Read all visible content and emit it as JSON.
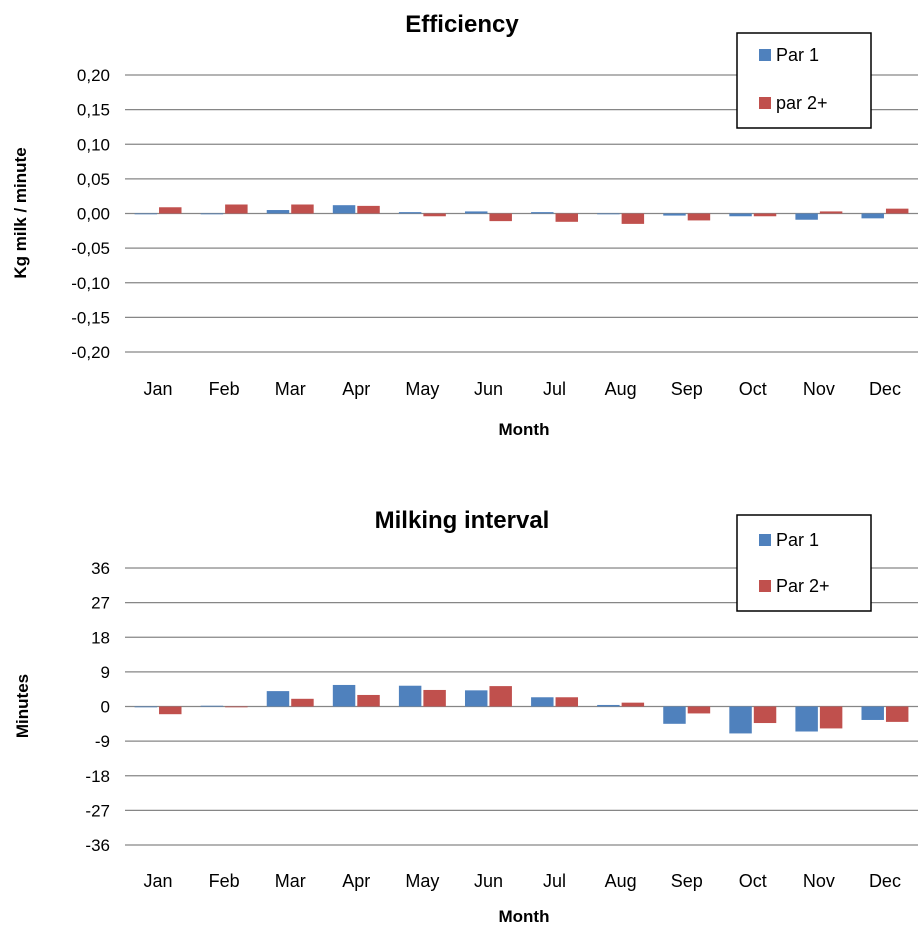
{
  "colors": {
    "series1": "#4f81bd",
    "series2": "#c0504d",
    "grid": "#868686"
  },
  "chart_data": [
    {
      "type": "bar",
      "title": "Efficiency",
      "xlabel": "Month",
      "ylabel": "Kg milk / minute",
      "ylim": [
        -0.2,
        0.2
      ],
      "yticks": [
        "0,20",
        "0,15",
        "0,10",
        "0,05",
        "0,00",
        "-0,05",
        "-0,10",
        "-0,15",
        "-0,20"
      ],
      "ytick_values": [
        0.2,
        0.15,
        0.1,
        0.05,
        0.0,
        -0.05,
        -0.1,
        -0.15,
        -0.2
      ],
      "categories": [
        "Jan",
        "Feb",
        "Mar",
        "Apr",
        "May",
        "Jun",
        "Jul",
        "Aug",
        "Sep",
        "Oct",
        "Nov",
        "Dec"
      ],
      "grid": true,
      "legend_position": "top-right",
      "series": [
        {
          "name": "Par 1",
          "values": [
            -0.001,
            0.0,
            0.005,
            0.012,
            0.002,
            0.003,
            0.002,
            -0.001,
            -0.003,
            -0.004,
            -0.009,
            -0.007
          ]
        },
        {
          "name": "par 2+",
          "values": [
            0.009,
            0.013,
            0.013,
            0.011,
            -0.004,
            -0.011,
            -0.012,
            -0.015,
            -0.01,
            -0.004,
            0.003,
            0.007
          ]
        }
      ]
    },
    {
      "type": "bar",
      "title": "Milking interval",
      "xlabel": "Month",
      "ylabel": "Minutes",
      "ylim": [
        -36,
        36
      ],
      "yticks": [
        "36",
        "27",
        "18",
        "9",
        "0",
        "-9",
        "-18",
        "-27",
        "-36"
      ],
      "ytick_values": [
        36,
        27,
        18,
        9,
        0,
        -9,
        -18,
        -27,
        -36
      ],
      "categories": [
        "Jan",
        "Feb",
        "Mar",
        "Apr",
        "May",
        "Jun",
        "Jul",
        "Aug",
        "Sep",
        "Oct",
        "Nov",
        "Dec"
      ],
      "grid": true,
      "legend_position": "top-right",
      "series": [
        {
          "name": "Par 1",
          "values": [
            0.0,
            0.2,
            4.0,
            5.6,
            5.4,
            4.2,
            2.4,
            0.4,
            -4.5,
            -7.0,
            -6.5,
            -3.5
          ]
        },
        {
          "name": "Par 2+",
          "values": [
            -2.0,
            0.0,
            2.0,
            3.0,
            4.3,
            5.3,
            2.4,
            1.0,
            -1.8,
            -4.3,
            -5.7,
            -4.0
          ]
        }
      ]
    }
  ]
}
